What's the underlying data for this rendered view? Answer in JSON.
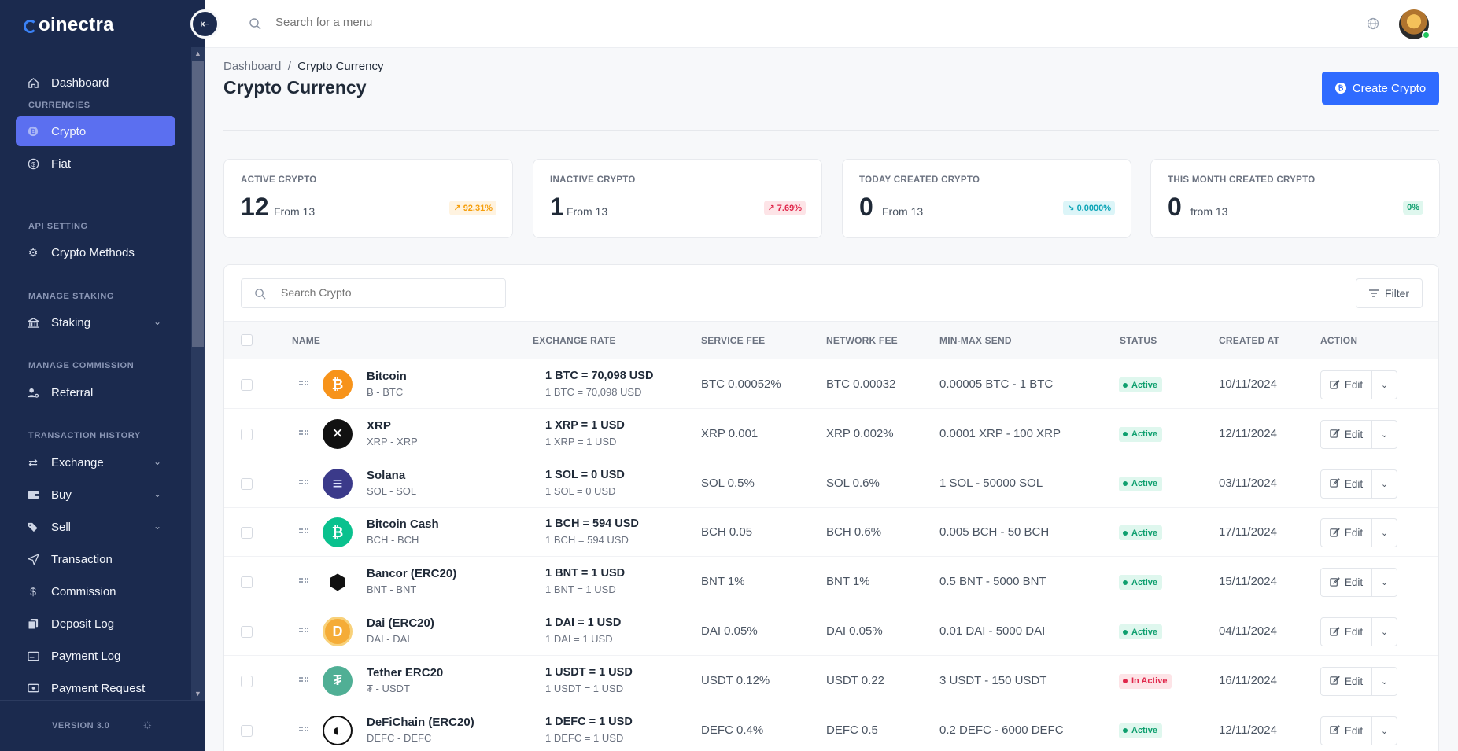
{
  "app": {
    "brand_rest": "oinectra",
    "brand_first": "C"
  },
  "sidebar": {
    "dashboard": "Dashboard",
    "sections": {
      "currencies": "CURRENCIES",
      "api_setting": "API SETTING",
      "manage_staking": "MANAGE STAKING",
      "manage_commission": "MANAGE COMMISSION",
      "transaction_history": "TRANSACTION HISTORY"
    },
    "items": {
      "crypto": "Crypto",
      "fiat": "Fiat",
      "crypto_methods": "Crypto Methods",
      "staking": "Staking",
      "referral": "Referral",
      "exchange": "Exchange",
      "buy": "Buy",
      "sell": "Sell",
      "transaction": "Transaction",
      "commission": "Commission",
      "deposit_log": "Deposit Log",
      "payment_log": "Payment Log",
      "payment_request": "Payment Request"
    },
    "version": "VERSION 3.0"
  },
  "topbar": {
    "search_placeholder": "Search for a menu"
  },
  "header": {
    "breadcrumb_root": "Dashboard",
    "breadcrumb_sep": "/",
    "breadcrumb_current": "Crypto Currency",
    "title": "Crypto Currency",
    "create_button": "Create Crypto"
  },
  "stats": [
    {
      "label": "ACTIVE CRYPTO",
      "value": "12",
      "from": "From 13",
      "pill": "92.31%"
    },
    {
      "label": "INACTIVE CRYPTO",
      "value": "1",
      "from": "From 13",
      "pill": "7.69%"
    },
    {
      "label": "TODAY CREATED CRYPTO",
      "value": "0",
      "from": "From 13",
      "pill": "0.0000%"
    },
    {
      "label": "THIS MONTH CREATED CRYPTO",
      "value": "0",
      "from": "from 13",
      "pill": "0%"
    }
  ],
  "colors": {
    "sidebar_bg": "#1b2a4e",
    "active_nav": "#5b6ff0",
    "primary": "#2f6bff",
    "pill_orange": "#f59e0b",
    "pill_red": "#e0264a",
    "pill_teal": "#0ea5b7",
    "success": "#0e9f6e"
  },
  "table": {
    "search_placeholder": "Search Crypto",
    "filter_label": "Filter",
    "columns": {
      "name": "NAME",
      "exchange_rate": "EXCHANGE RATE",
      "service_fee": "SERVICE FEE",
      "network_fee": "NETWORK FEE",
      "min_max": "MIN-MAX SEND",
      "status": "STATUS",
      "created_at": "CREATED AT",
      "action": "ACTION"
    },
    "edit_label": "Edit",
    "rows": [
      {
        "name": "Bitcoin",
        "sub": "Ƀ - BTC",
        "rate": "1 BTC = 70,098 USD",
        "rate_sub": "1 BTC = 70,098 USD",
        "service_fee": "BTC 0.00052%",
        "network_fee": "BTC 0.00032",
        "min_max": "0.00005 BTC - 1 BTC",
        "status": "Active",
        "created": "10/11/2024",
        "icon": "bitcoin-icon",
        "icon_color": "#f7931a",
        "icon_glyph": "₿"
      },
      {
        "name": "XRP",
        "sub": "XRP - XRP",
        "rate": "1 XRP = 1 USD",
        "rate_sub": "1 XRP = 1 USD",
        "service_fee": "XRP 0.001",
        "network_fee": "XRP 0.002%",
        "min_max": "0.0001 XRP - 100 XRP",
        "status": "Active",
        "created": "12/11/2024",
        "icon": "xrp-icon",
        "icon_color": "#111111",
        "icon_glyph": "✕"
      },
      {
        "name": "Solana",
        "sub": "SOL - SOL",
        "rate": "1 SOL = 0 USD",
        "rate_sub": "1 SOL = 0 USD",
        "service_fee": "SOL 0.5%",
        "network_fee": "SOL 0.6%",
        "min_max": "1 SOL - 50000 SOL",
        "status": "Active",
        "created": "03/11/2024",
        "icon": "solana-icon",
        "icon_color": "#3b3a8a",
        "icon_glyph": "≡"
      },
      {
        "name": "Bitcoin Cash",
        "sub": "BCH - BCH",
        "rate": "1 BCH = 594 USD",
        "rate_sub": "1 BCH = 594 USD",
        "service_fee": "BCH 0.05",
        "network_fee": "BCH 0.6%",
        "min_max": "0.005 BCH - 50 BCH",
        "status": "Active",
        "created": "17/11/2024",
        "icon": "bitcoin-cash-icon",
        "icon_color": "#0ac18e",
        "icon_glyph": "₿"
      },
      {
        "name": "Bancor (ERC20)",
        "sub": "BNT - BNT",
        "rate": "1 BNT = 1 USD",
        "rate_sub": "1 BNT = 1 USD",
        "service_fee": "BNT 1%",
        "network_fee": "BNT 1%",
        "min_max": "0.5 BNT - 5000 BNT",
        "status": "Active",
        "created": "15/11/2024",
        "icon": "bancor-icon",
        "icon_color": "#ffffff",
        "icon_glyph": "⬢"
      },
      {
        "name": "Dai (ERC20)",
        "sub": "DAI - DAI",
        "rate": "1 DAI = 1 USD",
        "rate_sub": "1 DAI = 1 USD",
        "service_fee": "DAI 0.05%",
        "network_fee": "DAI 0.05%",
        "min_max": "0.01 DAI - 5000 DAI",
        "status": "Active",
        "created": "04/11/2024",
        "icon": "dai-icon",
        "icon_color": "#f5ac37",
        "icon_glyph": "D"
      },
      {
        "name": "Tether ERC20",
        "sub": "₮ - USDT",
        "rate": "1 USDT = 1 USD",
        "rate_sub": "1 USDT = 1 USD",
        "service_fee": "USDT 0.12%",
        "network_fee": "USDT 0.22",
        "min_max": "3 USDT - 150 USDT",
        "status": "In Active",
        "created": "16/11/2024",
        "icon": "tether-icon",
        "icon_color": "#50af95",
        "icon_glyph": "₮"
      },
      {
        "name": "DeFiChain (ERC20)",
        "sub": "DEFC - DEFC",
        "rate": "1 DEFC = 1 USD",
        "rate_sub": "1 DEFC = 1 USD",
        "service_fee": "DEFC 0.4%",
        "network_fee": "DEFC 0.5",
        "min_max": "0.2 DEFC - 6000 DEFC",
        "status": "Active",
        "created": "12/11/2024",
        "icon": "defichain-icon",
        "icon_color": "#ffffff",
        "icon_glyph": "◐"
      }
    ]
  }
}
